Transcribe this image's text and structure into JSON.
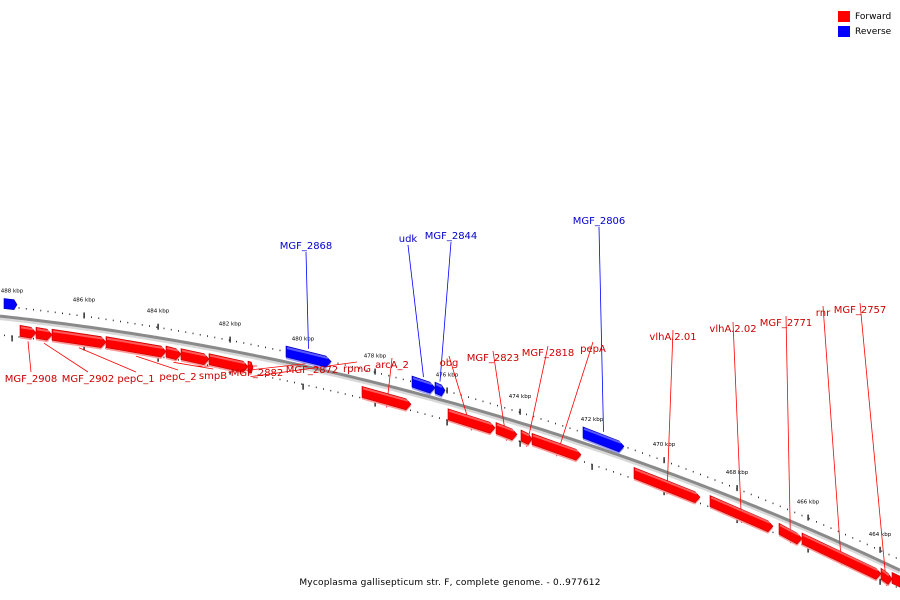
{
  "legend": {
    "forward_label": "Forward",
    "reverse_label": "Reverse",
    "forward_color": "#ff0000",
    "reverse_color": "#0000ff"
  },
  "caption": "Mycoplasma gallisepticum str. F, complete genome. - 0..977612",
  "tick_labels": [
    "488 kbp",
    "486 kbp",
    "484 kbp",
    "482 kbp",
    "480 kbp",
    "478 kbp",
    "476 kbp",
    "474 kbp",
    "472 kbp",
    "470 kbp",
    "468 kbp",
    "466 kbp",
    "464 kbp"
  ],
  "genes": [
    {
      "name": "MGF_2908",
      "strand": "forward"
    },
    {
      "name": "MGF_2902",
      "strand": "forward"
    },
    {
      "name": "pepC_1",
      "strand": "forward"
    },
    {
      "name": "pepC_2",
      "strand": "forward"
    },
    {
      "name": "smpB",
      "strand": "forward"
    },
    {
      "name": "MGF_2882",
      "strand": "forward"
    },
    {
      "name": "MGF_2872",
      "strand": "forward"
    },
    {
      "name": "rpmG",
      "strand": "forward"
    },
    {
      "name": "arcA_2",
      "strand": "forward"
    },
    {
      "name": "obg",
      "strand": "forward"
    },
    {
      "name": "MGF_2823",
      "strand": "forward"
    },
    {
      "name": "MGF_2818",
      "strand": "forward"
    },
    {
      "name": "pepA",
      "strand": "forward"
    },
    {
      "name": "vlhA.2.01",
      "strand": "forward"
    },
    {
      "name": "vlhA.2.02",
      "strand": "forward"
    },
    {
      "name": "MGF_2771",
      "strand": "forward"
    },
    {
      "name": "rnr",
      "strand": "forward"
    },
    {
      "name": "MGF_2757",
      "strand": "forward"
    },
    {
      "name": "MGF_2868",
      "strand": "reverse"
    },
    {
      "name": "udk",
      "strand": "reverse"
    },
    {
      "name": "MGF_2844",
      "strand": "reverse"
    },
    {
      "name": "MGF_2806",
      "strand": "reverse"
    }
  ]
}
